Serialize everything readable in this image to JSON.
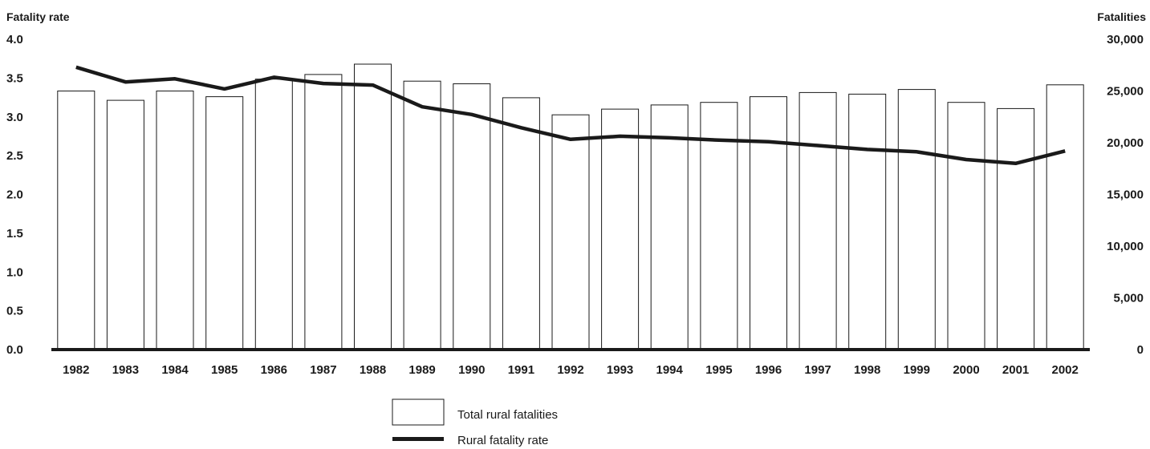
{
  "chart_data": {
    "type": "bar+line",
    "categories": [
      "1982",
      "1983",
      "1984",
      "1985",
      "1986",
      "1987",
      "1988",
      "1989",
      "1990",
      "1991",
      "1992",
      "1993",
      "1994",
      "1995",
      "1996",
      "1997",
      "1998",
      "1999",
      "2000",
      "2001",
      "2002"
    ],
    "left_axis": {
      "label": "Fatality rate",
      "ticks": [
        "0.0",
        "0.5",
        "1.0",
        "1.5",
        "2.0",
        "2.5",
        "3.0",
        "3.5",
        "4.0"
      ],
      "ylim": [
        0,
        4.0
      ]
    },
    "right_axis": {
      "label": "Fatalities",
      "ticks": [
        "0",
        "5,000",
        "10,000",
        "15,000",
        "20,000",
        "25,000",
        "30,000"
      ],
      "ylim": [
        0,
        30000
      ]
    },
    "series": [
      {
        "name": "Total rural fatalities",
        "type": "bar",
        "axis": "right",
        "values": [
          25000,
          24100,
          25000,
          24450,
          26150,
          26600,
          27600,
          25950,
          25700,
          24350,
          22700,
          23250,
          23650,
          23900,
          24450,
          24850,
          24700,
          25150,
          23900,
          23300,
          25600
        ]
      },
      {
        "name": "Rural fatality rate",
        "type": "line",
        "axis": "left",
        "values": [
          3.64,
          3.45,
          3.49,
          3.36,
          3.51,
          3.43,
          3.41,
          3.13,
          3.03,
          2.86,
          2.71,
          2.75,
          2.73,
          2.7,
          2.68,
          2.63,
          2.58,
          2.55,
          2.45,
          2.4,
          2.56
        ]
      }
    ],
    "legend_position": "bottom-center",
    "colors": {
      "line": "#1a1a1a",
      "bar_fill": "#ffffff",
      "bar_stroke": "#1a1a1a"
    }
  }
}
